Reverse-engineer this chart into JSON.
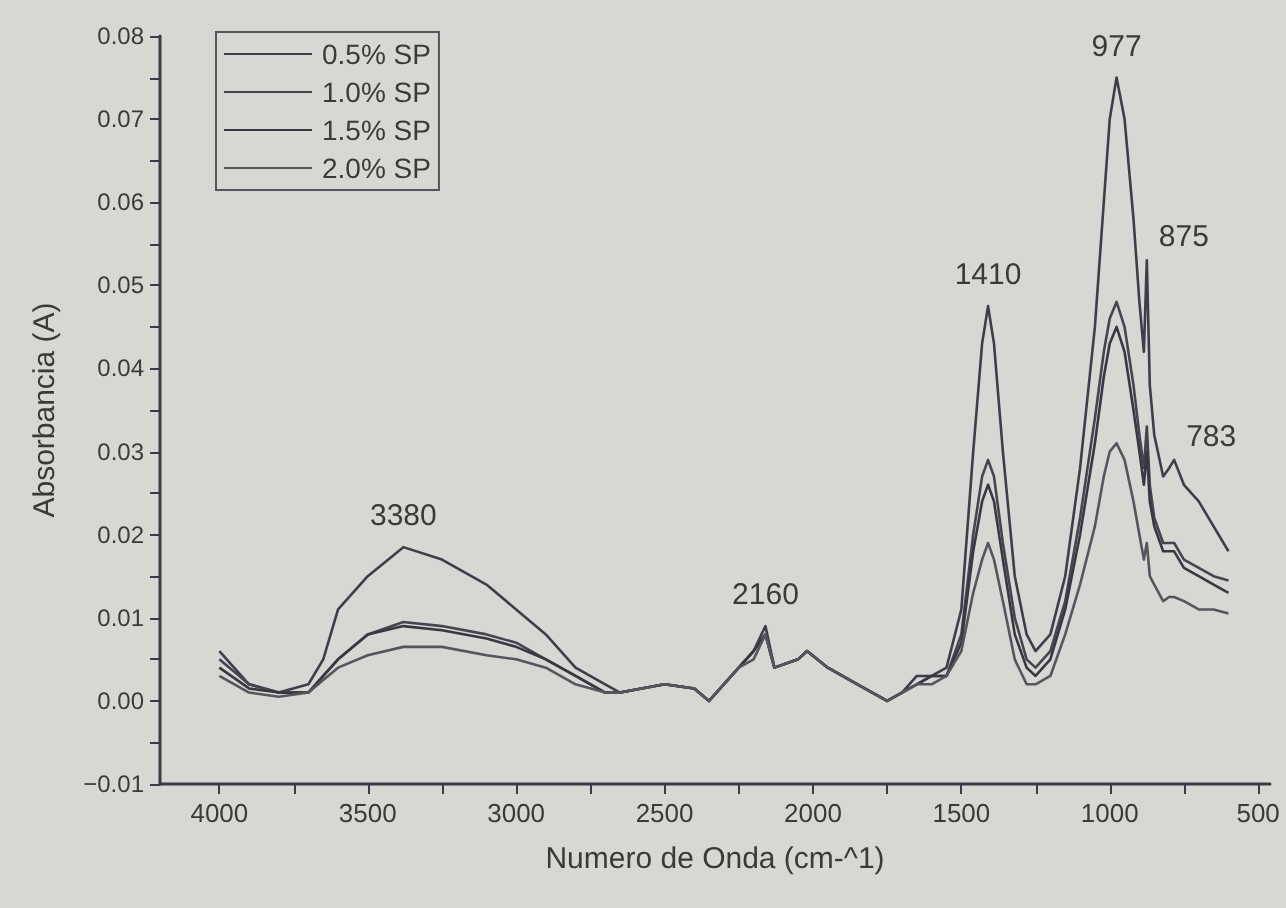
{
  "chart_data": {
    "type": "line",
    "xlabel": "Numero de Onda (cm-^1)",
    "ylabel": "Absorbancia (A)",
    "xlim": [
      4200,
      460
    ],
    "xticks": [
      4000,
      3500,
      3000,
      2500,
      2000,
      1500,
      1000,
      500
    ],
    "ylim": [
      -0.01,
      0.08
    ],
    "yticks": [
      {
        "value": -0.01,
        "label": "−0.01"
      },
      {
        "value": 0,
        "label": "0.00"
      },
      {
        "value": 0.01,
        "label": "0.01"
      },
      {
        "value": 0.02,
        "label": "0.02"
      },
      {
        "value": 0.03,
        "label": "0.03"
      },
      {
        "value": 0.04,
        "label": "0.04"
      },
      {
        "value": 0.05,
        "label": "0.05"
      },
      {
        "value": 0.06,
        "label": "0.06"
      },
      {
        "value": 0.07,
        "label": "0.07"
      },
      {
        "value": 0.08,
        "label": "0.08"
      }
    ],
    "grid": false,
    "legend": "top left",
    "marker": "none",
    "line_style": "solid",
    "x": [
      4000,
      3900,
      3800,
      3700,
      3650,
      3600,
      3500,
      3380,
      3250,
      3100,
      3000,
      2900,
      2800,
      2700,
      2650,
      2500,
      2400,
      2350,
      2250,
      2200,
      2160,
      2130,
      2050,
      2020,
      1950,
      1850,
      1800,
      1750,
      1700,
      1650,
      1600,
      1550,
      1500,
      1460,
      1430,
      1410,
      1390,
      1360,
      1320,
      1280,
      1250,
      1200,
      1150,
      1100,
      1050,
      1020,
      1000,
      977,
      950,
      920,
      900,
      885,
      875,
      865,
      850,
      820,
      800,
      783,
      750,
      700,
      650,
      600
    ],
    "series": [
      {
        "name": "0.5% SP",
        "color": "#3e3e4a",
        "values": [
          0.006,
          0.002,
          0.001,
          0.002,
          0.005,
          0.011,
          0.015,
          0.0185,
          0.017,
          0.014,
          0.011,
          0.008,
          0.004,
          0.002,
          0.001,
          0.002,
          0.0015,
          0.0,
          0.004,
          0.006,
          0.009,
          0.004,
          0.005,
          0.006,
          0.004,
          0.002,
          0.001,
          0.0,
          0.001,
          0.003,
          0.003,
          0.004,
          0.011,
          0.03,
          0.043,
          0.0475,
          0.043,
          0.03,
          0.015,
          0.008,
          0.006,
          0.008,
          0.015,
          0.028,
          0.045,
          0.06,
          0.07,
          0.075,
          0.07,
          0.058,
          0.048,
          0.042,
          0.053,
          0.038,
          0.032,
          0.027,
          0.028,
          0.029,
          0.026,
          0.024,
          0.021,
          0.018
        ]
      },
      {
        "name": "1.0% SP",
        "color": "#454550",
        "values": [
          0.005,
          0.002,
          0.001,
          0.001,
          0.003,
          0.005,
          0.008,
          0.0095,
          0.009,
          0.008,
          0.007,
          0.005,
          0.003,
          0.001,
          0.001,
          0.002,
          0.0015,
          0.0,
          0.004,
          0.006,
          0.008,
          0.004,
          0.005,
          0.006,
          0.004,
          0.002,
          0.001,
          0.0,
          0.001,
          0.002,
          0.003,
          0.003,
          0.008,
          0.02,
          0.027,
          0.029,
          0.027,
          0.019,
          0.01,
          0.005,
          0.004,
          0.006,
          0.012,
          0.022,
          0.034,
          0.042,
          0.046,
          0.048,
          0.045,
          0.038,
          0.032,
          0.028,
          0.033,
          0.026,
          0.022,
          0.019,
          0.019,
          0.019,
          0.017,
          0.016,
          0.015,
          0.0145
        ]
      },
      {
        "name": "1.5% SP",
        "color": "#383842",
        "values": [
          0.004,
          0.0015,
          0.001,
          0.001,
          0.003,
          0.005,
          0.008,
          0.009,
          0.0085,
          0.0075,
          0.0065,
          0.005,
          0.003,
          0.001,
          0.001,
          0.002,
          0.0015,
          0.0,
          0.004,
          0.006,
          0.008,
          0.004,
          0.005,
          0.006,
          0.004,
          0.002,
          0.001,
          0.0,
          0.001,
          0.002,
          0.003,
          0.003,
          0.007,
          0.018,
          0.024,
          0.026,
          0.024,
          0.017,
          0.008,
          0.004,
          0.003,
          0.005,
          0.011,
          0.02,
          0.031,
          0.039,
          0.043,
          0.045,
          0.042,
          0.035,
          0.03,
          0.026,
          0.03,
          0.024,
          0.021,
          0.018,
          0.018,
          0.018,
          0.016,
          0.015,
          0.014,
          0.013
        ]
      },
      {
        "name": "2.0% SP",
        "color": "#55555e",
        "values": [
          0.003,
          0.001,
          0.0005,
          0.001,
          0.0025,
          0.004,
          0.0055,
          0.0065,
          0.0065,
          0.0055,
          0.005,
          0.004,
          0.002,
          0.001,
          0.001,
          0.002,
          0.0015,
          0.0,
          0.004,
          0.005,
          0.008,
          0.004,
          0.005,
          0.006,
          0.004,
          0.002,
          0.001,
          0.0,
          0.001,
          0.002,
          0.002,
          0.003,
          0.006,
          0.013,
          0.017,
          0.019,
          0.017,
          0.012,
          0.005,
          0.002,
          0.002,
          0.003,
          0.008,
          0.014,
          0.021,
          0.027,
          0.03,
          0.031,
          0.029,
          0.024,
          0.02,
          0.017,
          0.019,
          0.015,
          0.014,
          0.012,
          0.0125,
          0.0125,
          0.012,
          0.011,
          0.011,
          0.0105
        ]
      }
    ],
    "annotations": [
      {
        "text": "3380",
        "x": 3380,
        "y": 0.0185
      },
      {
        "text": "2160",
        "x": 2160,
        "y": 0.009
      },
      {
        "text": "1410",
        "x": 1410,
        "y": 0.0475
      },
      {
        "text": "977",
        "x": 977,
        "y": 0.075
      },
      {
        "text": "875",
        "x": 875,
        "y": 0.053
      },
      {
        "text": "783",
        "x": 783,
        "y": 0.029
      }
    ]
  }
}
